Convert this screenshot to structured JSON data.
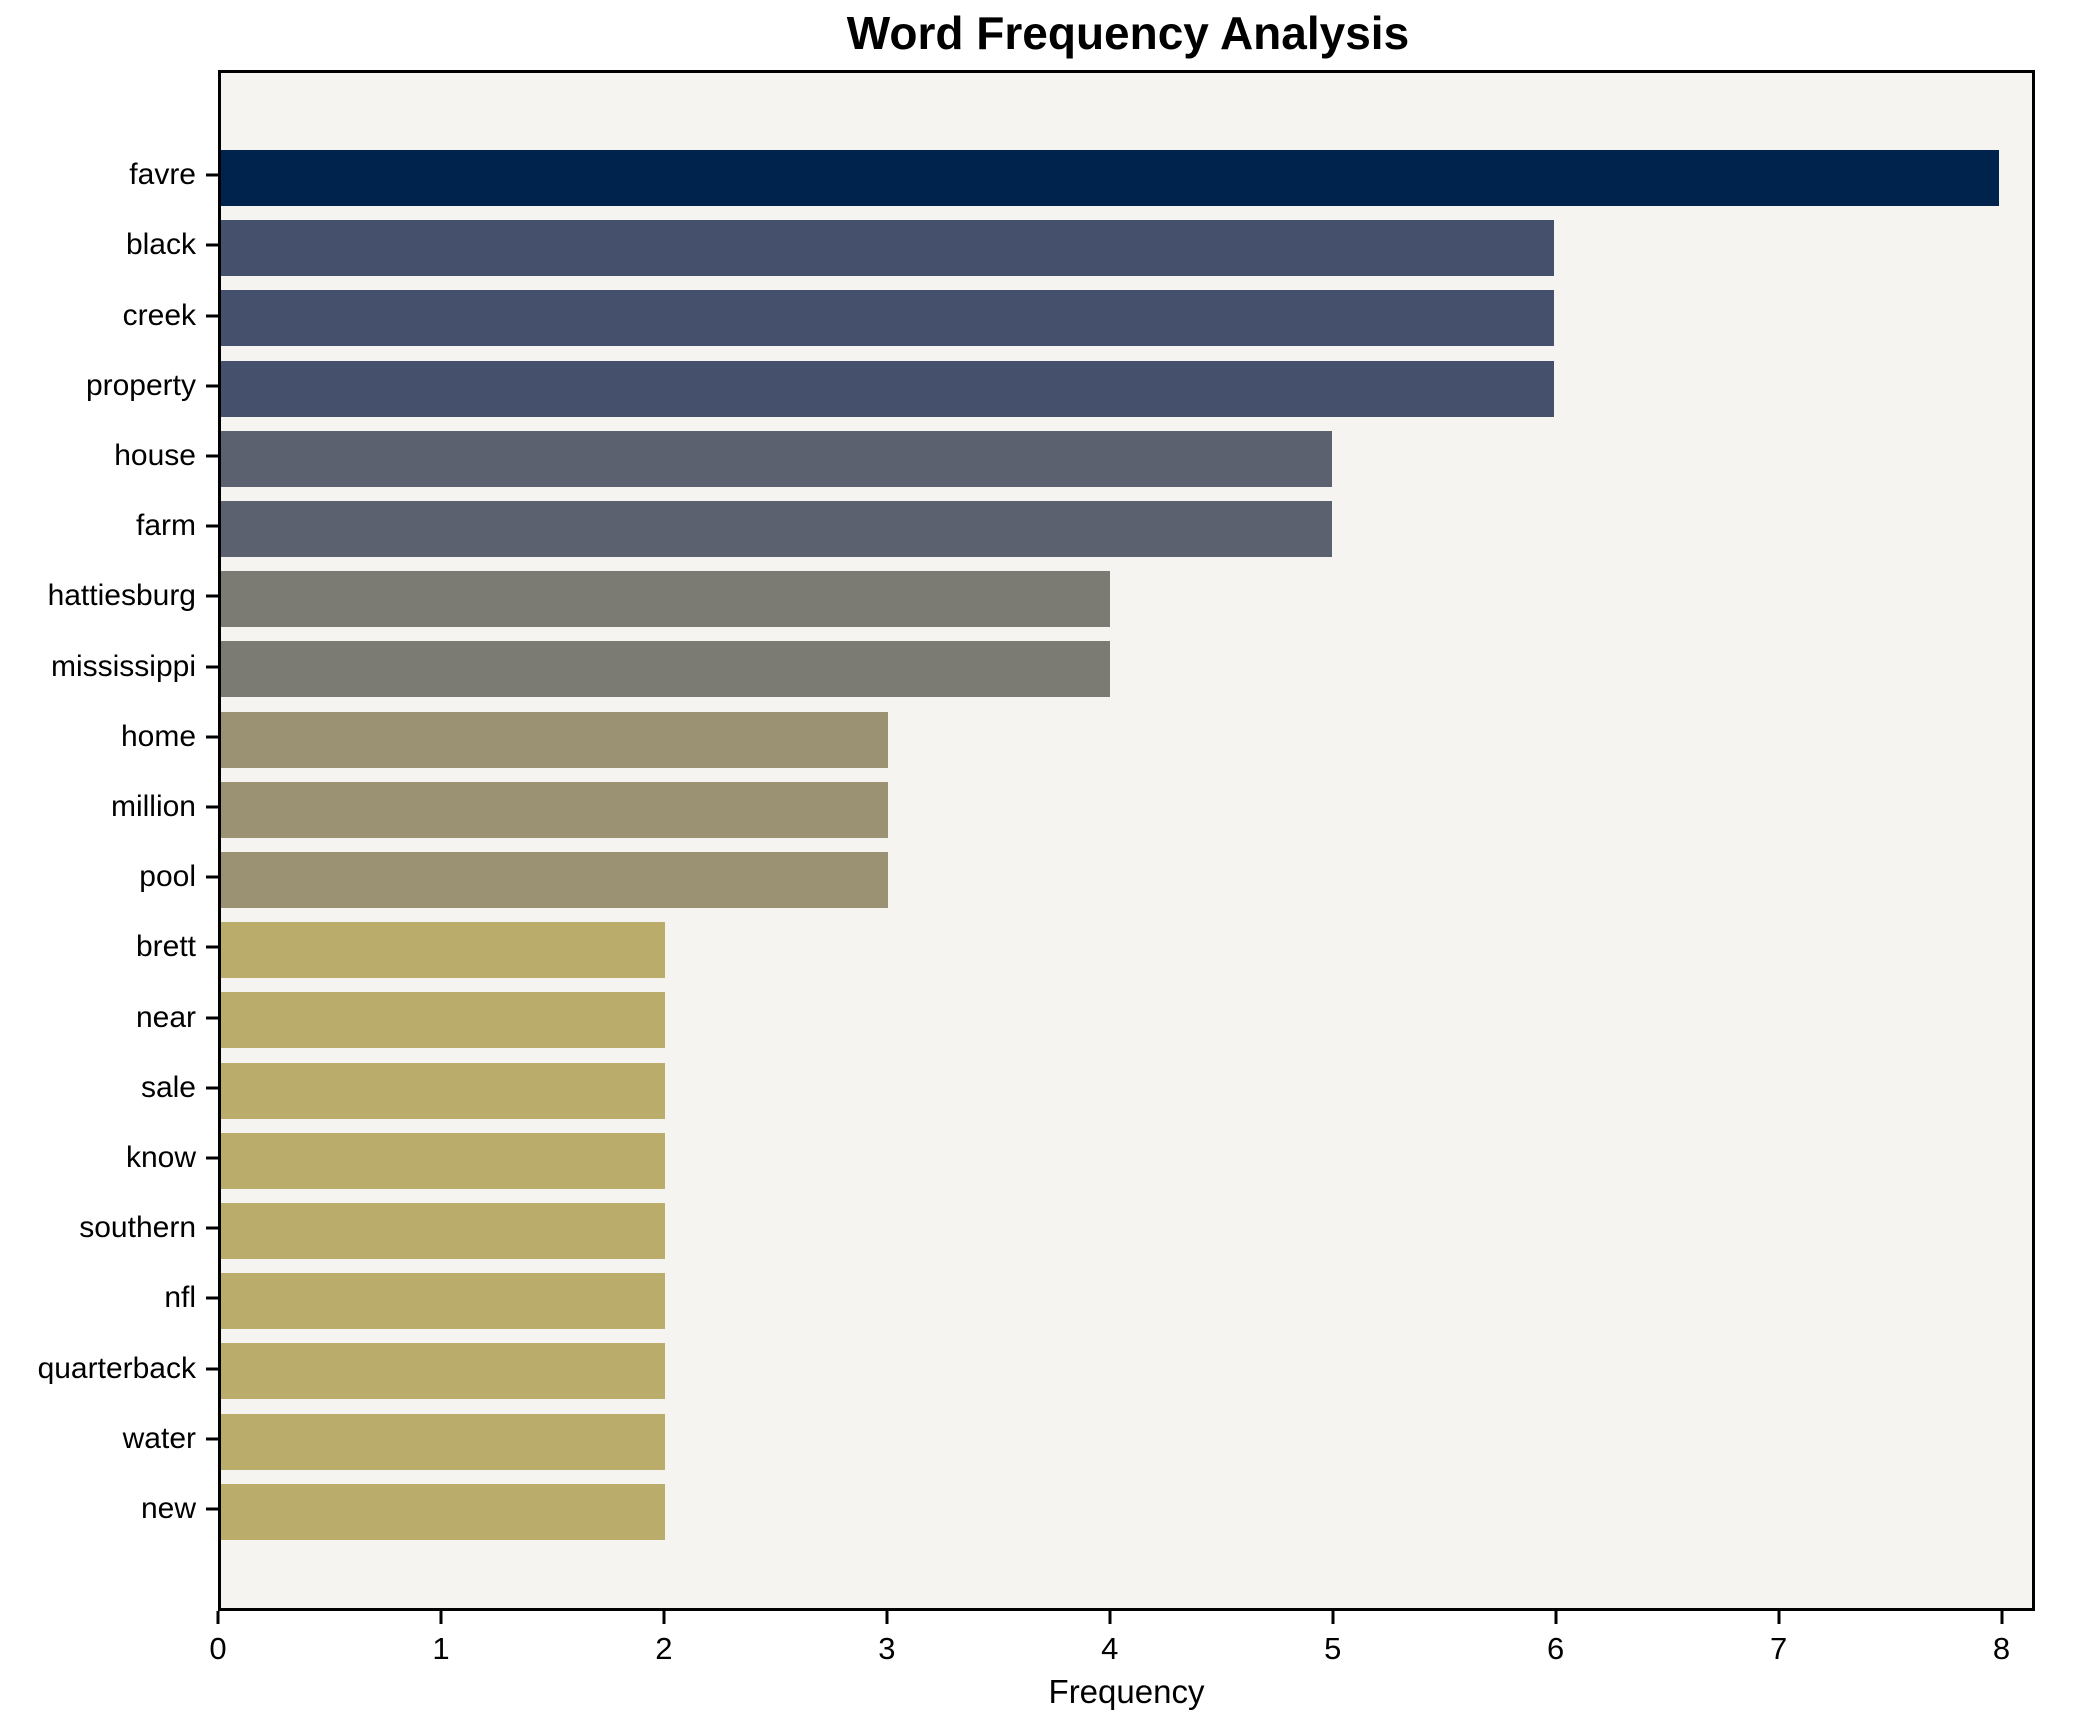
{
  "chart_data": {
    "type": "bar",
    "orientation": "horizontal",
    "title": "Word Frequency Analysis",
    "xlabel": "Frequency",
    "ylabel": "",
    "categories": [
      "favre",
      "black",
      "creek",
      "property",
      "house",
      "farm",
      "hattiesburg",
      "mississippi",
      "home",
      "million",
      "pool",
      "brett",
      "near",
      "sale",
      "know",
      "southern",
      "nfl",
      "quarterback",
      "water",
      "new"
    ],
    "values": [
      8,
      6,
      6,
      6,
      5,
      5,
      4,
      4,
      3,
      3,
      3,
      2,
      2,
      2,
      2,
      2,
      2,
      2,
      2,
      2
    ],
    "bar_colors": [
      "#00234d",
      "#45506c",
      "#45506c",
      "#45506c",
      "#5b616e",
      "#5b616e",
      "#7b7a73",
      "#7b7a73",
      "#9a9272",
      "#9a9272",
      "#9a9272",
      "#baad6b",
      "#baad6b",
      "#baad6b",
      "#baad6b",
      "#baad6b",
      "#baad6b",
      "#baad6b",
      "#baad6b",
      "#baad6b"
    ],
    "x_ticks": [
      0,
      1,
      2,
      3,
      4,
      5,
      6,
      7,
      8
    ],
    "xlim": [
      0,
      8.15
    ],
    "grid": false,
    "legend": null,
    "plot_background": "#f5f4f1",
    "spine_color": "#000000",
    "text_color": "#000000"
  }
}
